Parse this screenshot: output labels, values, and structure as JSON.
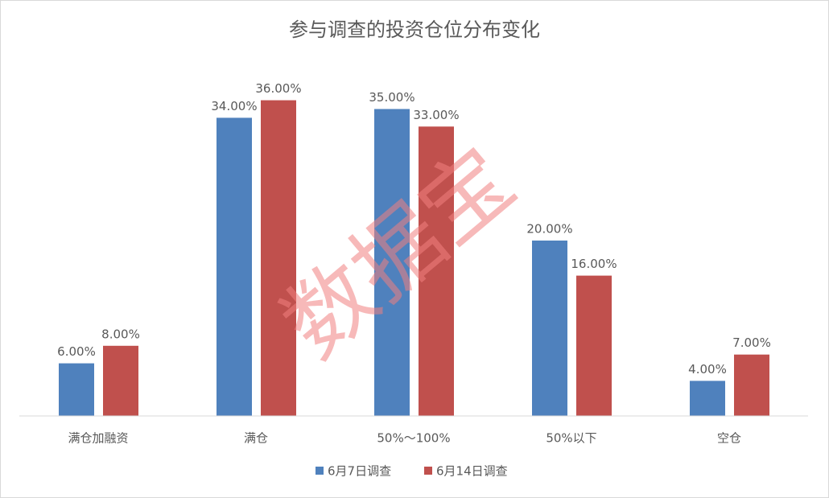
{
  "chart_data": {
    "type": "bar",
    "title": "参与调查的投资仓位分布变化",
    "categories": [
      "满仓加融资",
      "满仓",
      "50%～100%",
      "50%以下",
      "空仓"
    ],
    "series": [
      {
        "name": "6月7日调查",
        "color": "#4f81bd",
        "values": [
          6,
          34,
          35,
          20,
          4
        ],
        "value_labels": [
          "6.00%",
          "34.00%",
          "35.00%",
          "20.00%",
          "4.00%"
        ]
      },
      {
        "name": "6月14日调查",
        "color": "#c0504d",
        "values": [
          8,
          36,
          33,
          16,
          7
        ],
        "value_labels": [
          "8.00%",
          "36.00%",
          "33.00%",
          "16.00%",
          "7.00%"
        ]
      }
    ],
    "ylim": [
      0,
      40
    ],
    "legend": "bottom",
    "watermark": "数据宝"
  }
}
